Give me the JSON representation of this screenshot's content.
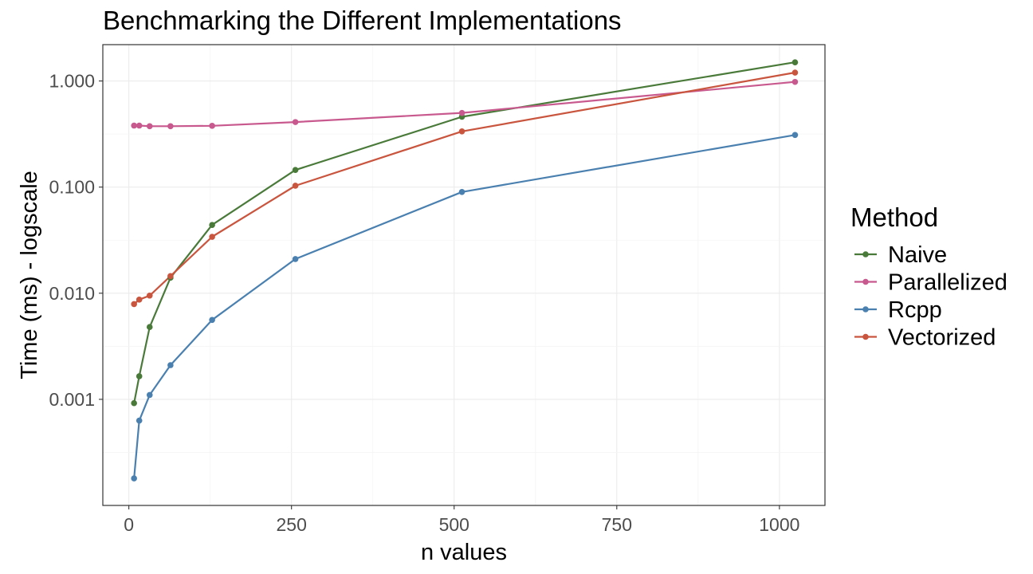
{
  "chart_data": {
    "type": "line",
    "title": "Benchmarking the Different Implementations",
    "xlabel": "n values",
    "ylabel": "Time (ms) - logscale",
    "x_scale": "linear",
    "y_scale": "log10",
    "xlim": [
      -40,
      1070
    ],
    "ylim": [
      0.0001,
      2.2
    ],
    "x_ticks": [
      0,
      250,
      500,
      750,
      1000
    ],
    "x_tick_labels": [
      "0",
      "250",
      "500",
      "750",
      "1000"
    ],
    "y_ticks": [
      0.001,
      0.01,
      0.1,
      1
    ],
    "y_tick_labels": [
      "0.001",
      "0.010",
      "0.100",
      "1.000"
    ],
    "grid": true,
    "legend_title": "Method",
    "legend_position": "right",
    "x": [
      8,
      16,
      32,
      64,
      128,
      256,
      512,
      1024
    ],
    "series": [
      {
        "name": "Naive",
        "color": "#4a7a3a",
        "values": [
          0.00092,
          0.00165,
          0.0048,
          0.014,
          0.044,
          0.145,
          0.46,
          1.5
        ]
      },
      {
        "name": "Parallelized",
        "color": "#c8598e",
        "values": [
          0.38,
          0.38,
          0.375,
          0.375,
          0.378,
          0.41,
          0.5,
          0.98
        ]
      },
      {
        "name": "Rcpp",
        "color": "#4a80b0",
        "values": [
          0.00018,
          0.00063,
          0.0011,
          0.0021,
          0.0056,
          0.021,
          0.09,
          0.31
        ]
      },
      {
        "name": "Vectorized",
        "color": "#c9553e",
        "values": [
          0.0079,
          0.0087,
          0.0095,
          0.0145,
          0.034,
          0.103,
          0.335,
          1.2
        ]
      }
    ]
  }
}
